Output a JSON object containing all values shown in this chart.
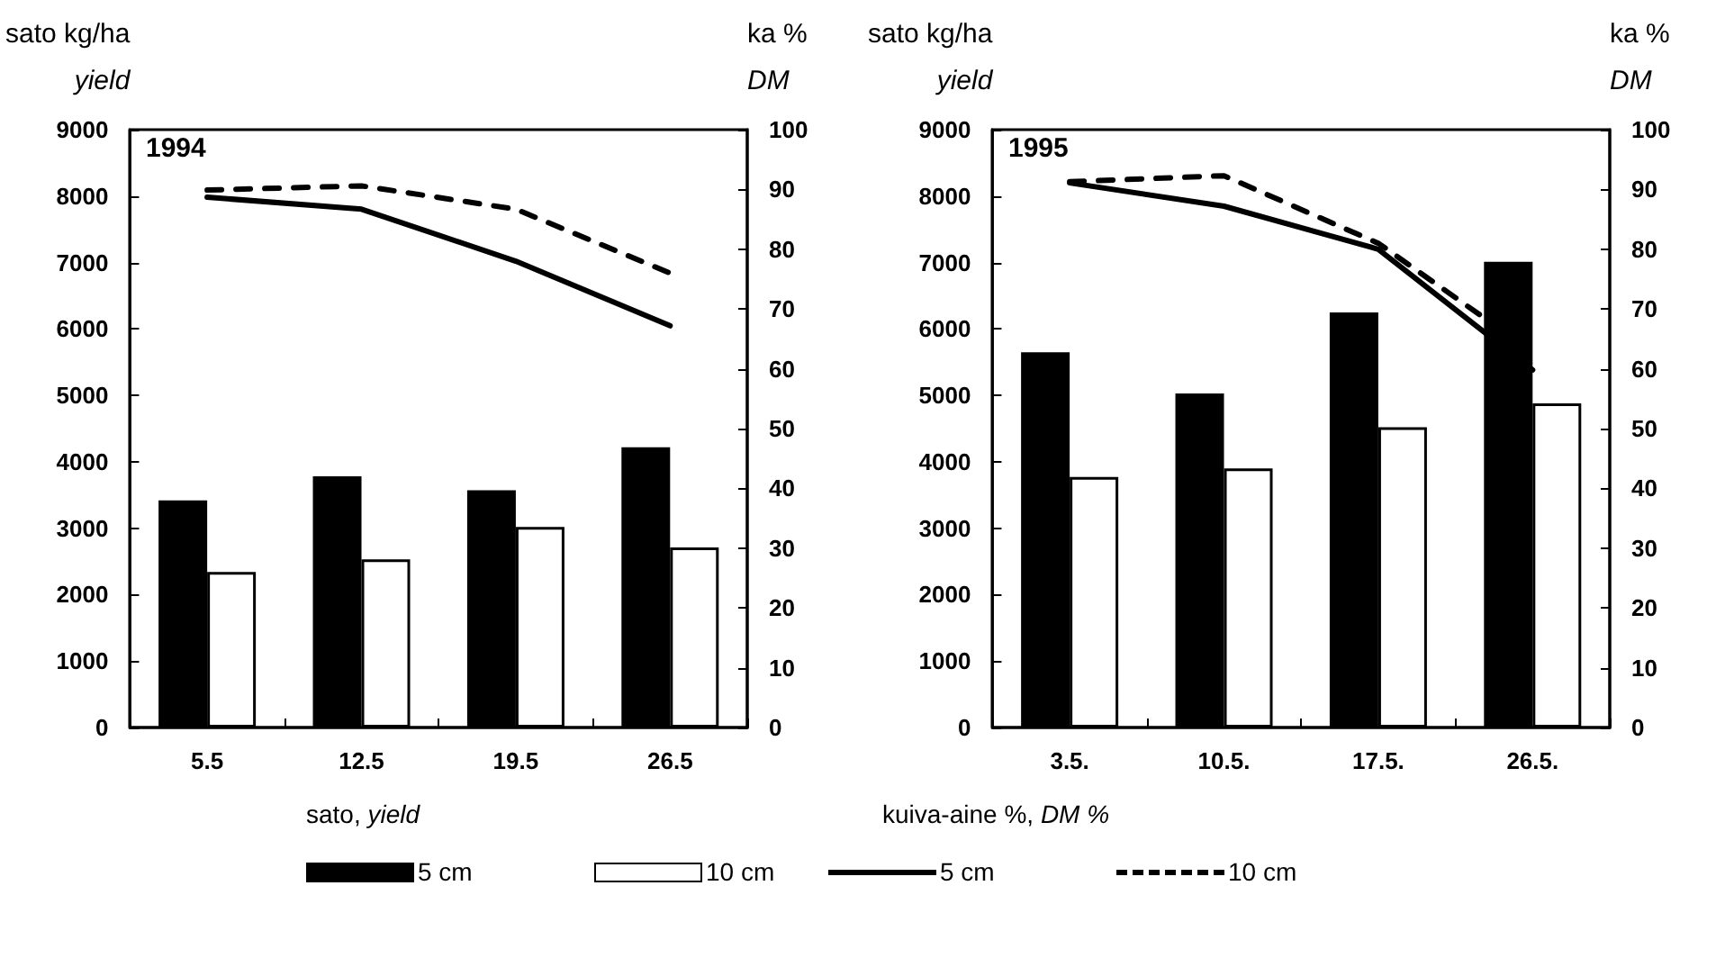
{
  "chart_data": [
    {
      "type": "bar",
      "title": "1994",
      "ylabel": "sato kg/ha\nyield",
      "y2label": "ka %\nDM",
      "legend_title": "sato, yield",
      "categories": [
        "5.5",
        "12.5",
        "19.5",
        "26.5"
      ],
      "series": [
        {
          "name": "5 cm",
          "color": "#000000",
          "values": [
            3420,
            3780,
            3570,
            4220
          ]
        },
        {
          "name": "10 cm",
          "color": "#ffffff",
          "values": [
            2340,
            2530,
            3020,
            2710
          ]
        },
        {
          "type": "line",
          "axis": "y2",
          "color": "#000000",
          "line_style": "solid",
          "values": [
            88.7,
            86.7,
            78,
            67.2
          ]
        },
        {
          "type": "line",
          "axis": "y2",
          "color": "#000000",
          "line_style": "dashed",
          "values": [
            89.9,
            90.6,
            86.7,
            76
          ]
        }
      ],
      "ylim": [
        0,
        9000
      ],
      "yticks": [
        0,
        1000,
        2000,
        3000,
        4000,
        5000,
        6000,
        7000,
        8000,
        9000
      ],
      "y2lim": [
        0,
        100
      ],
      "y2ticks": [
        0,
        10,
        20,
        30,
        40,
        50,
        60,
        70,
        80,
        90,
        100
      ],
      "marker": "none",
      "grid": false,
      "legend": "bottom"
    },
    {
      "type": "bar",
      "title": "1995",
      "ylabel": "sato kg/ha\nyield",
      "y2label": "ka %\nDM",
      "legend_title": "kuiva-aine %, DM %",
      "categories": [
        "3.5.",
        "10.5.",
        "17.5.",
        "26.5."
      ],
      "series": [
        {
          "color": "#000000",
          "values": [
            5650,
            5030,
            6250,
            7010
          ]
        },
        {
          "color": "#ffffff",
          "values": [
            3770,
            3900,
            4520,
            4880
          ]
        },
        {
          "name": "5 cm",
          "type": "line",
          "axis": "y2",
          "color": "#000000",
          "line_style": "solid",
          "values": [
            91.1,
            87.2,
            80,
            59.8
          ]
        },
        {
          "name": "10 cm",
          "type": "line",
          "axis": "y2",
          "color": "#000000",
          "line_style": "dashed",
          "values": [
            91.3,
            92.3,
            81,
            62.8
          ]
        }
      ],
      "ylim": [
        0,
        9000
      ],
      "yticks": [
        0,
        1000,
        2000,
        3000,
        4000,
        5000,
        6000,
        7000,
        8000,
        9000
      ],
      "y2lim": [
        0,
        100
      ],
      "y2ticks": [
        0,
        10,
        20,
        30,
        40,
        50,
        60,
        70,
        80,
        90,
        100
      ],
      "marker": "none",
      "grid": false,
      "legend": "bottom"
    }
  ]
}
